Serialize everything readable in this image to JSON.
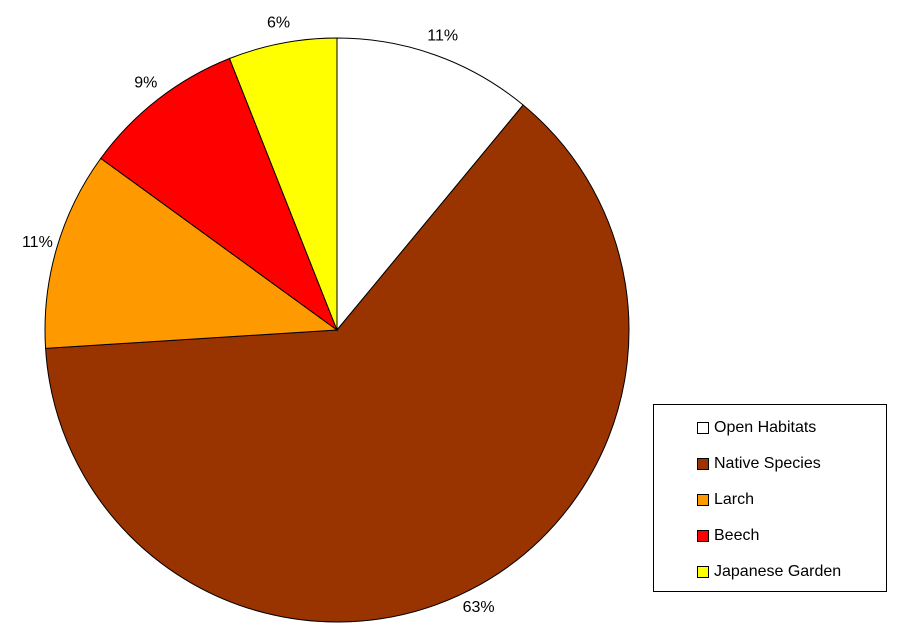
{
  "chart_data": {
    "type": "pie",
    "slices": [
      {
        "name": "Open Habitats",
        "value": 11,
        "label": "11%",
        "color": "#ffffff"
      },
      {
        "name": "Native Species",
        "value": 63,
        "label": "63%",
        "color": "#993300"
      },
      {
        "name": "Larch",
        "value": 11,
        "label": "11%",
        "color": "#ff9900"
      },
      {
        "name": "Beech",
        "value": 9,
        "label": "9%",
        "color": "#ff0000"
      },
      {
        "name": "Japanese Garden",
        "value": 6,
        "label": "6%",
        "color": "#ffff00"
      }
    ],
    "start": "12 o'clock",
    "direction": "clockwise",
    "legend_position": "bottom-right"
  }
}
